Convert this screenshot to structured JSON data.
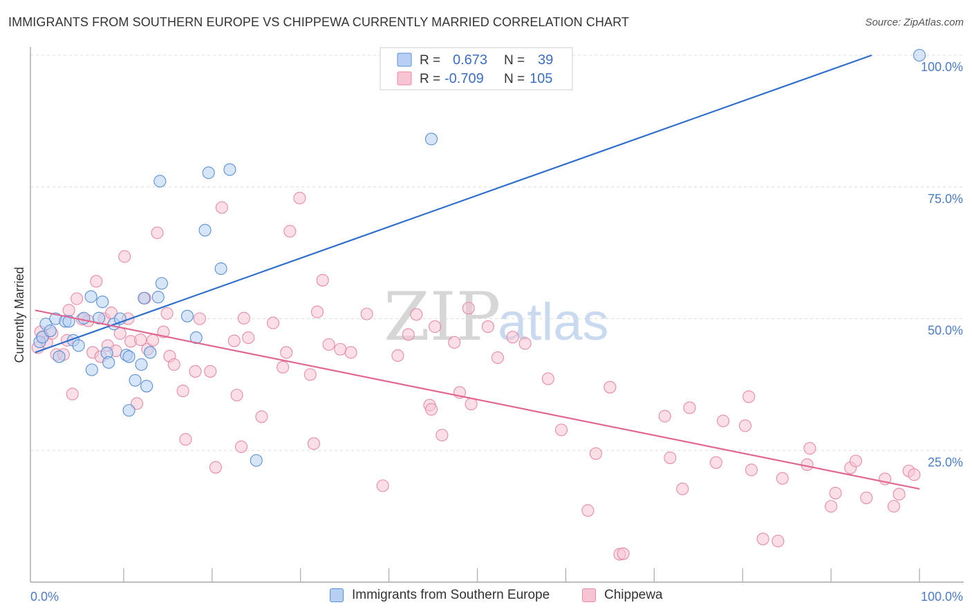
{
  "title": "IMMIGRANTS FROM SOUTHERN EUROPE VS CHIPPEWA CURRENTLY MARRIED CORRELATION CHART",
  "source": "Source: ZipAtlas.com",
  "watermark": {
    "zip": "ZIP",
    "atlas": "atlas"
  },
  "colors": {
    "blue_fill": "#b7cff2",
    "blue_stroke": "#5b8fd6",
    "blue_line": "#2f6fcc",
    "pink_fill": "#f7c4d4",
    "pink_stroke": "#e88aa8",
    "pink_line": "#e2678f",
    "tick_text": "#4a7cc9",
    "grid": "#dddddd"
  },
  "legend": {
    "rows": [
      {
        "r_label": "R =",
        "r_value": "0.673",
        "n_label": "N =",
        "n_value": "39"
      },
      {
        "r_label": "R =",
        "r_value": "-0.709",
        "n_label": "N =",
        "n_value": "105"
      }
    ]
  },
  "bottom_legend": {
    "items": [
      {
        "label": "Immigrants from Southern Europe"
      },
      {
        "label": "Chippewa"
      }
    ]
  },
  "chart_data": {
    "type": "scatter",
    "title": "IMMIGRANTS FROM SOUTHERN EUROPE VS CHIPPEWA CURRENTLY MARRIED CORRELATION CHART",
    "xlabel": "",
    "ylabel": "Currently Married",
    "xlim": [
      0,
      100
    ],
    "ylim": [
      0,
      100
    ],
    "x_tick_labels": [
      "0.0%",
      "100.0%"
    ],
    "y_tick_labels": [
      "25.0%",
      "50.0%",
      "75.0%",
      "100.0%"
    ],
    "y_ticks": [
      25,
      50,
      75,
      100
    ],
    "grid": true,
    "legend_position": "top-center",
    "series": [
      {
        "name": "Immigrants from Southern Europe",
        "r": 0.673,
        "n": 39,
        "trend": [
          [
            0,
            43.6
          ],
          [
            94.6,
            100
          ]
        ],
        "points": [
          [
            0.5,
            45.6
          ],
          [
            0.8,
            46.5
          ],
          [
            1.2,
            49.0
          ],
          [
            1.7,
            47.7
          ],
          [
            2.3,
            50.0
          ],
          [
            2.7,
            42.8
          ],
          [
            3.4,
            49.5
          ],
          [
            3.8,
            49.5
          ],
          [
            4.3,
            45.9
          ],
          [
            4.9,
            44.9
          ],
          [
            5.5,
            50.1
          ],
          [
            6.3,
            54.2
          ],
          [
            6.4,
            40.3
          ],
          [
            7.2,
            50.1
          ],
          [
            7.6,
            53.2
          ],
          [
            8.1,
            43.5
          ],
          [
            8.3,
            41.7
          ],
          [
            8.9,
            49.0
          ],
          [
            9.6,
            50.0
          ],
          [
            10.3,
            43.1
          ],
          [
            10.6,
            42.8
          ],
          [
            10.6,
            32.6
          ],
          [
            11.3,
            38.3
          ],
          [
            12.0,
            41.3
          ],
          [
            12.6,
            37.2
          ],
          [
            13.0,
            43.6
          ],
          [
            12.3,
            53.9
          ],
          [
            13.9,
            54.1
          ],
          [
            14.1,
            76.1
          ],
          [
            14.3,
            56.7
          ],
          [
            17.2,
            50.5
          ],
          [
            18.2,
            46.4
          ],
          [
            19.2,
            66.8
          ],
          [
            19.6,
            77.7
          ],
          [
            21.0,
            59.5
          ],
          [
            22.0,
            78.3
          ],
          [
            25.0,
            23.1
          ],
          [
            44.8,
            84.1
          ],
          [
            100.0,
            100.0
          ]
        ]
      },
      {
        "name": "Chippewa",
        "r": -0.709,
        "n": 105,
        "trend": [
          [
            0,
            51.6
          ],
          [
            100,
            17.7
          ]
        ],
        "points": [
          [
            0.3,
            44.5
          ],
          [
            0.6,
            47.5
          ],
          [
            0.9,
            46.6
          ],
          [
            1.3,
            45.5
          ],
          [
            1.9,
            47.2
          ],
          [
            2.4,
            43.2
          ],
          [
            3.2,
            43.2
          ],
          [
            3.6,
            45.9
          ],
          [
            3.8,
            51.6
          ],
          [
            4.2,
            35.7
          ],
          [
            4.7,
            53.8
          ],
          [
            5.3,
            49.9
          ],
          [
            6.0,
            49.6
          ],
          [
            6.5,
            43.6
          ],
          [
            6.9,
            57.1
          ],
          [
            7.4,
            42.8
          ],
          [
            7.8,
            50.0
          ],
          [
            8.2,
            44.9
          ],
          [
            8.6,
            51.1
          ],
          [
            9.1,
            43.9
          ],
          [
            9.6,
            47.2
          ],
          [
            10.1,
            61.8
          ],
          [
            10.5,
            50.0
          ],
          [
            10.8,
            45.7
          ],
          [
            11.5,
            33.9
          ],
          [
            11.9,
            46.0
          ],
          [
            12.4,
            53.9
          ],
          [
            12.7,
            44.2
          ],
          [
            13.3,
            45.9
          ],
          [
            13.8,
            66.3
          ],
          [
            14.5,
            47.5
          ],
          [
            14.9,
            51.0
          ],
          [
            15.2,
            42.9
          ],
          [
            15.7,
            41.3
          ],
          [
            16.7,
            36.3
          ],
          [
            17.0,
            27.1
          ],
          [
            18.1,
            40.0
          ],
          [
            18.6,
            50.0
          ],
          [
            19.8,
            40.0
          ],
          [
            20.4,
            21.8
          ],
          [
            21.1,
            71.1
          ],
          [
            22.5,
            45.8
          ],
          [
            22.8,
            35.5
          ],
          [
            23.3,
            25.7
          ],
          [
            23.6,
            50.1
          ],
          [
            24.1,
            46.4
          ],
          [
            25.6,
            31.4
          ],
          [
            26.9,
            49.2
          ],
          [
            28.0,
            40.8
          ],
          [
            28.4,
            43.6
          ],
          [
            28.8,
            66.6
          ],
          [
            29.9,
            72.9
          ],
          [
            31.1,
            39.4
          ],
          [
            31.5,
            26.3
          ],
          [
            31.9,
            51.3
          ],
          [
            32.5,
            57.3
          ],
          [
            33.2,
            45.1
          ],
          [
            34.5,
            44.2
          ],
          [
            35.7,
            43.6
          ],
          [
            37.5,
            50.9
          ],
          [
            39.3,
            18.3
          ],
          [
            41.0,
            43.0
          ],
          [
            42.2,
            47.0
          ],
          [
            43.1,
            50.8
          ],
          [
            44.6,
            33.6
          ],
          [
            44.8,
            32.8
          ],
          [
            45.2,
            48.5
          ],
          [
            46.0,
            27.9
          ],
          [
            47.4,
            45.5
          ],
          [
            48.0,
            36.0
          ],
          [
            49.0,
            52.0
          ],
          [
            49.3,
            33.8
          ],
          [
            51.2,
            48.5
          ],
          [
            52.3,
            42.6
          ],
          [
            54.0,
            46.5
          ],
          [
            55.4,
            45.3
          ],
          [
            58.0,
            38.6
          ],
          [
            59.5,
            28.9
          ],
          [
            62.5,
            13.6
          ],
          [
            63.4,
            24.4
          ],
          [
            65.0,
            37.0
          ],
          [
            66.1,
            5.3
          ],
          [
            66.5,
            5.4
          ],
          [
            71.2,
            31.5
          ],
          [
            71.8,
            23.6
          ],
          [
            73.2,
            17.7
          ],
          [
            74.0,
            33.1
          ],
          [
            77.0,
            22.7
          ],
          [
            77.8,
            30.6
          ],
          [
            80.3,
            29.7
          ],
          [
            80.7,
            35.2
          ],
          [
            81.0,
            21.3
          ],
          [
            82.3,
            8.2
          ],
          [
            84.0,
            7.8
          ],
          [
            84.5,
            19.7
          ],
          [
            87.3,
            22.3
          ],
          [
            87.6,
            25.4
          ],
          [
            90.0,
            14.4
          ],
          [
            90.5,
            16.9
          ],
          [
            92.2,
            21.7
          ],
          [
            92.8,
            23.0
          ],
          [
            94.0,
            16.0
          ],
          [
            96.1,
            19.6
          ],
          [
            97.1,
            14.4
          ],
          [
            97.7,
            16.7
          ],
          [
            98.8,
            21.1
          ],
          [
            99.4,
            20.4
          ]
        ]
      }
    ]
  }
}
